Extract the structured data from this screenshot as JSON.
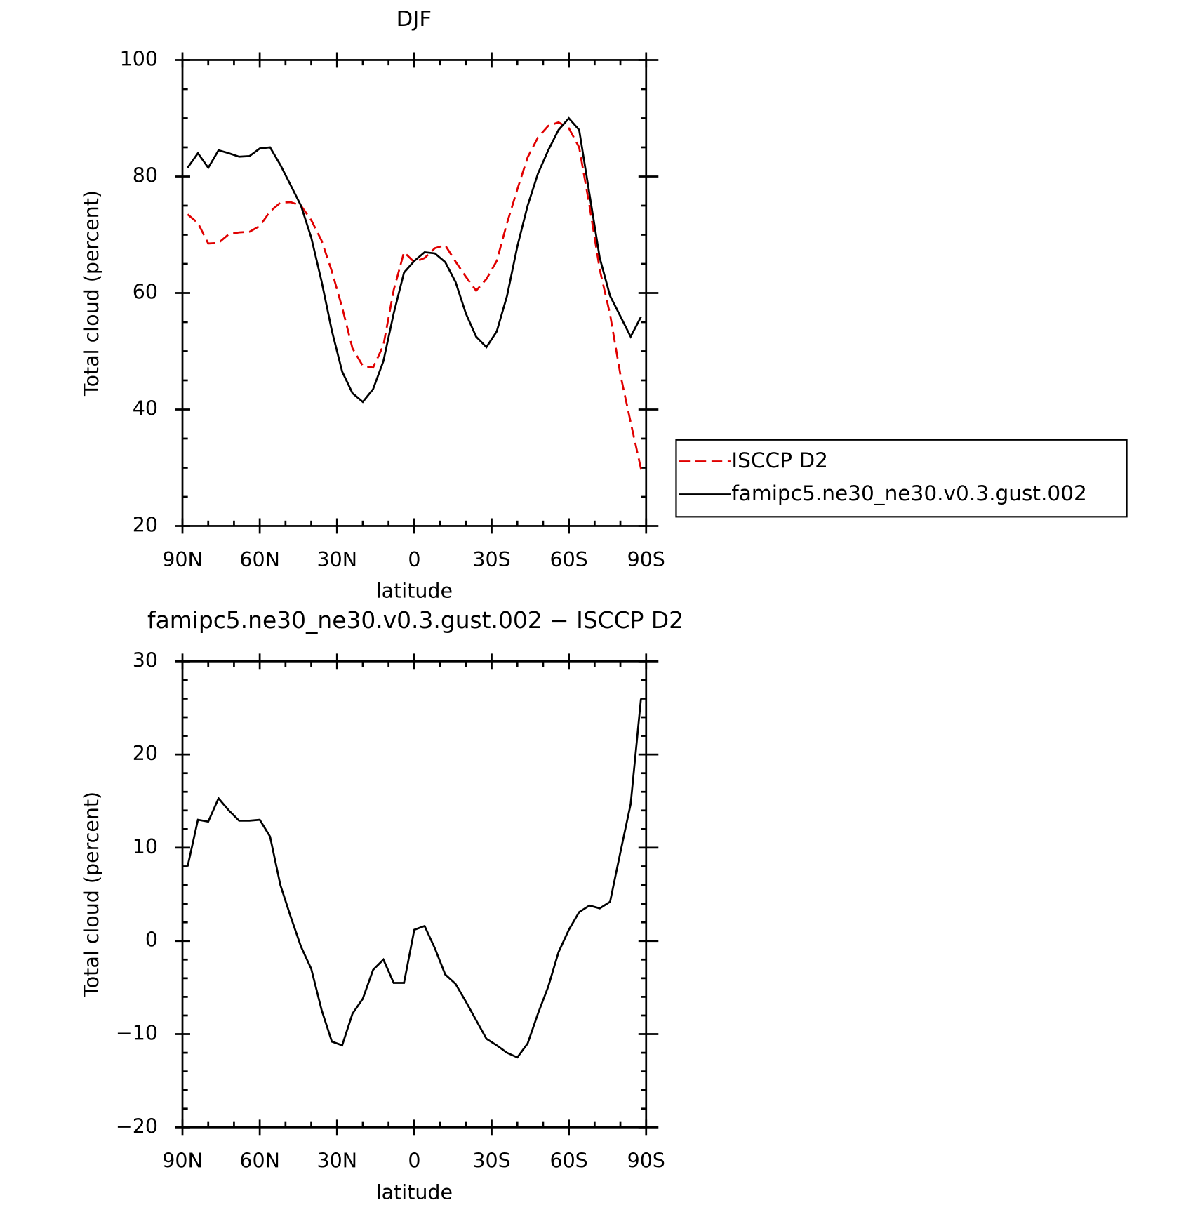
{
  "chart_data": [
    {
      "type": "line",
      "title": "DJF",
      "xlabel": "latitude",
      "ylabel": "Total cloud (percent)",
      "x": [
        88,
        84,
        80,
        76,
        72,
        68,
        64,
        60,
        56,
        52,
        48,
        44,
        40,
        36,
        32,
        28,
        24,
        20,
        16,
        12,
        8,
        4,
        0,
        -4,
        -8,
        -12,
        -16,
        -20,
        -24,
        -28,
        -32,
        -36,
        -40,
        -44,
        -48,
        -52,
        -56,
        -60,
        -64,
        -68,
        -72,
        -76,
        -80,
        -84,
        -88
      ],
      "xlim": [
        90,
        -90
      ],
      "xticks": [
        {
          "value": 90,
          "label": "90N"
        },
        {
          "value": 60,
          "label": "60N"
        },
        {
          "value": 30,
          "label": "30N"
        },
        0,
        {
          "value": -30,
          "label": "30S"
        },
        {
          "value": -60,
          "label": "60S"
        },
        {
          "value": -90,
          "label": "90S"
        }
      ],
      "xminorticks": [
        80,
        70,
        50,
        40,
        20,
        10,
        -10,
        -20,
        -40,
        -50,
        -70,
        -80
      ],
      "ylim": [
        20,
        100
      ],
      "yticks": [
        20,
        40,
        60,
        80,
        100
      ],
      "yminorticks": [
        25,
        30,
        35,
        45,
        50,
        55,
        65,
        70,
        75,
        85,
        90,
        95
      ],
      "legend": "right",
      "series": [
        {
          "name": "ISCCP D2",
          "color": "#e00000",
          "dash": true,
          "values": [
            73.5,
            72,
            68.5,
            68.6,
            70.1,
            70.4,
            70.5,
            71.5,
            74,
            75.5,
            75.6,
            75,
            72.5,
            69,
            63.7,
            57.5,
            50.5,
            47.5,
            47.2,
            51,
            60.5,
            67,
            65.3,
            66,
            67.7,
            68.2,
            65.4,
            62.8,
            60.4,
            62.4,
            65.5,
            72,
            77.8,
            83.3,
            86.7,
            88.7,
            89.3,
            88.3,
            85,
            75,
            64,
            56.3,
            46,
            37.8,
            29.8
          ]
        },
        {
          "name": "famipc5.ne30_ne30.v0.3.gust.002",
          "color": "#000000",
          "dash": false,
          "values": [
            81.5,
            84,
            81.5,
            84.5,
            84,
            83.4,
            83.5,
            84.8,
            85,
            82,
            78.5,
            75,
            69.5,
            62,
            53.5,
            46.5,
            42.8,
            41.3,
            43.5,
            48.3,
            56.5,
            63.5,
            65.5,
            67,
            66.8,
            65.3,
            61.9,
            56.5,
            52.5,
            50.7,
            53.4,
            59.5,
            68,
            75,
            80.5,
            84.5,
            88,
            90,
            88,
            77,
            66,
            59.5,
            56,
            52.5,
            55.9
          ]
        }
      ]
    },
    {
      "type": "line",
      "title": "famipc5.ne30_ne30.v0.3.gust.002 − ISCCP D2",
      "xlabel": "latitude",
      "ylabel": "Total cloud (percent)",
      "x": [
        88,
        84,
        80,
        76,
        72,
        68,
        64,
        60,
        56,
        52,
        48,
        44,
        40,
        36,
        32,
        28,
        24,
        20,
        16,
        12,
        8,
        4,
        0,
        -4,
        -8,
        -12,
        -16,
        -20,
        -24,
        -28,
        -32,
        -36,
        -40,
        -44,
        -48,
        -52,
        -56,
        -60,
        -64,
        -68,
        -72,
        -76,
        -80,
        -84,
        -88
      ],
      "xlim": [
        90,
        -90
      ],
      "xticks": [
        {
          "value": 90,
          "label": "90N"
        },
        {
          "value": 60,
          "label": "60N"
        },
        {
          "value": 30,
          "label": "30N"
        },
        0,
        {
          "value": -30,
          "label": "30S"
        },
        {
          "value": -60,
          "label": "60S"
        },
        {
          "value": -90,
          "label": "90S"
        }
      ],
      "xminorticks": [
        80,
        70,
        50,
        40,
        20,
        10,
        -10,
        -20,
        -40,
        -50,
        -70,
        -80
      ],
      "ylim": [
        -20,
        30
      ],
      "yticks": [
        {
          "value": -20,
          "label": "−20"
        },
        {
          "value": -10,
          "label": "−10"
        },
        0,
        10,
        20,
        30
      ],
      "yminorticks": [
        -18,
        -16,
        -14,
        -12,
        -8,
        -6,
        -4,
        -2,
        2,
        4,
        6,
        8,
        12,
        14,
        16,
        18,
        22,
        24,
        26,
        28
      ],
      "series": [
        {
          "color": "#000000",
          "dash": false,
          "values": [
            8,
            13,
            12.8,
            15.3,
            14,
            12.9,
            12.9,
            13,
            11.2,
            6,
            2.6,
            -0.6,
            -3,
            -7.4,
            -10.8,
            -11.2,
            -7.8,
            -6.2,
            -3.1,
            -2,
            -4.5,
            -4.5,
            1.2,
            1.6,
            -0.8,
            -3.6,
            -4.6,
            -6.5,
            -8.5,
            -10.5,
            -11.2,
            -12,
            -12.5,
            -11,
            -7.8,
            -4.9,
            -1.2,
            1.2,
            3.1,
            3.8,
            3.5,
            4.2,
            9.5,
            14.7,
            26
          ]
        }
      ]
    }
  ]
}
